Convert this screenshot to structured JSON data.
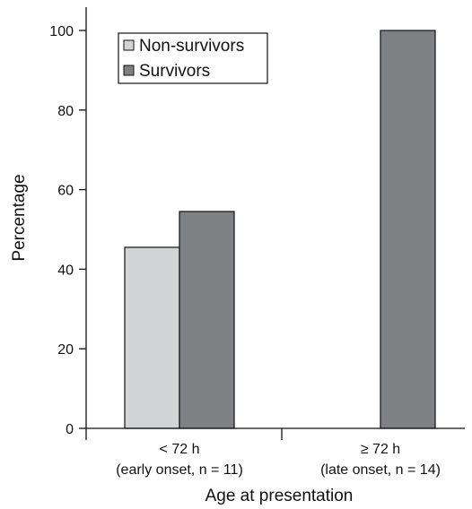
{
  "chart_data": {
    "type": "bar",
    "categories": [
      {
        "line1": "< 72 h",
        "line2": "(early onset, n = 11)"
      },
      {
        "line1": "≥ 72 h",
        "line2": "(late onset, n = 14)"
      }
    ],
    "series": [
      {
        "name": "Non-survivors",
        "values": [
          45.5,
          0
        ],
        "color": "#d2d3d5"
      },
      {
        "name": "Survivors",
        "values": [
          54.5,
          100
        ],
        "color": "#7f8084"
      }
    ],
    "xlabel": "Age at presentation",
    "ylabel": "Percentage",
    "ylim": [
      0,
      100
    ],
    "yticks": [
      0,
      20,
      40,
      60,
      80,
      100
    ],
    "grid": false,
    "legend_position": "top-left"
  }
}
